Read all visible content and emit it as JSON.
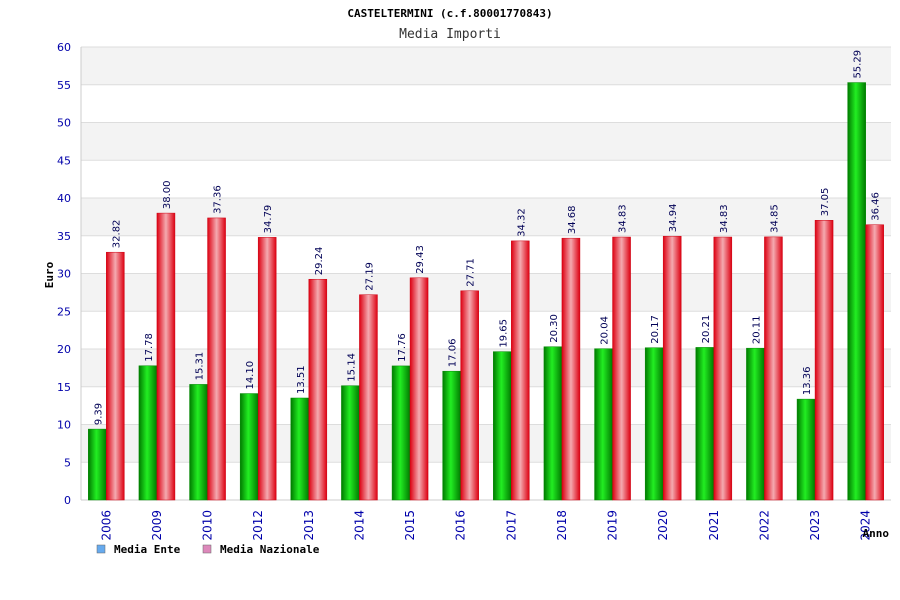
{
  "chart_data": {
    "type": "bar",
    "title": "CASTELTERMINI (c.f.80001770843)",
    "subtitle": "Media Importi",
    "xlabel": "Anno",
    "ylabel": "Euro",
    "ylim": [
      0,
      60
    ],
    "yticks": [
      0,
      5,
      10,
      15,
      20,
      25,
      30,
      35,
      40,
      45,
      50,
      55,
      60
    ],
    "grid": true,
    "legend_position": "bottom-left",
    "categories": [
      "2006",
      "2009",
      "2010",
      "2012",
      "2013",
      "2014",
      "2015",
      "2016",
      "2017",
      "2018",
      "2019",
      "2020",
      "2021",
      "2022",
      "2023",
      "2024"
    ],
    "series": [
      {
        "name": "Media Ente",
        "color": "#00bb00",
        "legend_color": "#66aaee",
        "values": [
          9.39,
          17.78,
          15.31,
          14.1,
          13.51,
          15.14,
          17.76,
          17.06,
          19.65,
          20.3,
          20.04,
          20.17,
          20.21,
          20.11,
          13.36,
          55.29
        ],
        "labels": [
          "9.39",
          "17.78",
          "15.31",
          "14.10",
          "13.51",
          "15.14",
          "17.76",
          "17.06",
          "19.65",
          "20.30",
          "20.04",
          "20.17",
          "20.21",
          "20.11",
          "13.36",
          "55.29"
        ]
      },
      {
        "name": "Media Nazionale",
        "color": "#ee1122",
        "legend_color": "#dd88bb",
        "values": [
          32.82,
          38.0,
          37.36,
          34.79,
          29.24,
          27.19,
          29.43,
          27.71,
          34.32,
          34.68,
          34.83,
          34.94,
          34.83,
          34.85,
          37.05,
          36.46
        ],
        "labels": [
          "32.82",
          "38.00",
          "37.36",
          "34.79",
          "29.24",
          "27.19",
          "29.43",
          "27.71",
          "34.32",
          "34.68",
          "34.83",
          "34.94",
          "34.83",
          "34.85",
          "37.05",
          "36.46"
        ]
      }
    ]
  }
}
